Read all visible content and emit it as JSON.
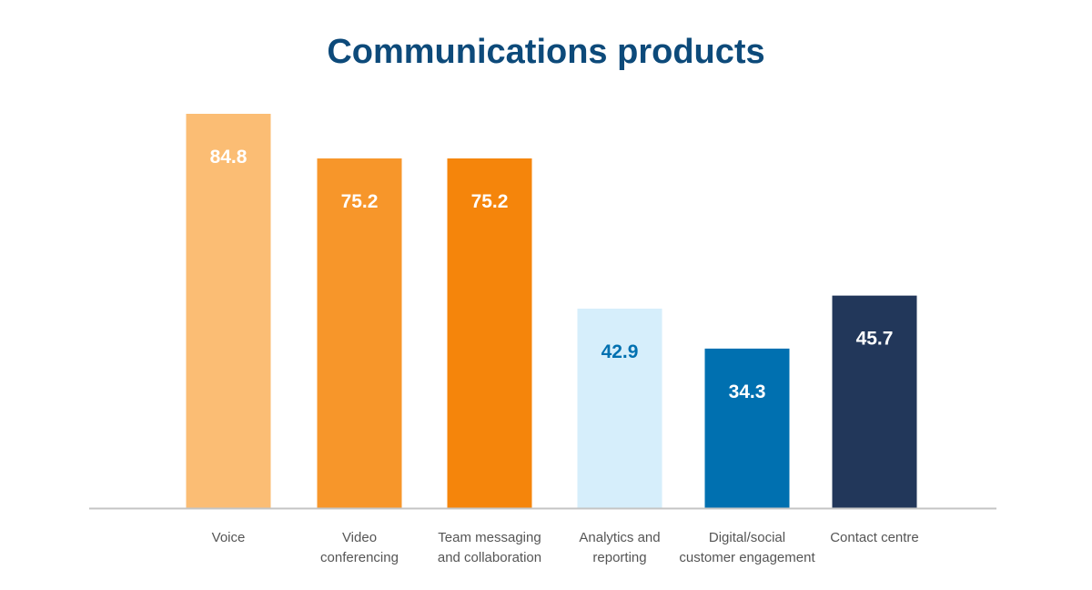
{
  "chart_data": {
    "type": "bar",
    "title": "Communications products",
    "categories": [
      [
        "Voice"
      ],
      [
        "Video",
        "conferencing"
      ],
      [
        "Team messaging",
        "and collaboration"
      ],
      [
        "Analytics and",
        "reporting"
      ],
      [
        "Digital/social",
        "customer engagement"
      ],
      [
        "Contact centre"
      ]
    ],
    "values": [
      84.8,
      75.2,
      75.2,
      42.9,
      34.3,
      45.7
    ],
    "value_labels": [
      "84.8",
      "75.2",
      "75.2",
      "42.9",
      "34.3",
      "45.7"
    ],
    "colors": [
      "#fbbd74",
      "#f7962a",
      "#f5850b",
      "#d6eefb",
      "#0070b0",
      "#22375a"
    ],
    "label_colors": [
      "#ffffff",
      "#ffffff",
      "#ffffff",
      "#0070b0",
      "#ffffff",
      "#ffffff"
    ],
    "xlabel": "",
    "ylabel": "",
    "ylim": [
      0,
      84.8
    ],
    "grid": false,
    "legend": "none"
  }
}
